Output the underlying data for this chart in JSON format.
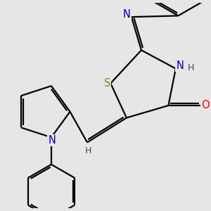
{
  "bg_color": "#e6e6e6",
  "bond_color": "#000000",
  "bond_width": 1.6,
  "atom_colors": {
    "N": "#0000cc",
    "O": "#ff0000",
    "S": "#888800",
    "H": "#444444",
    "C": "#000000"
  },
  "font_size_atom": 10.5,
  "font_size_H": 9.0
}
